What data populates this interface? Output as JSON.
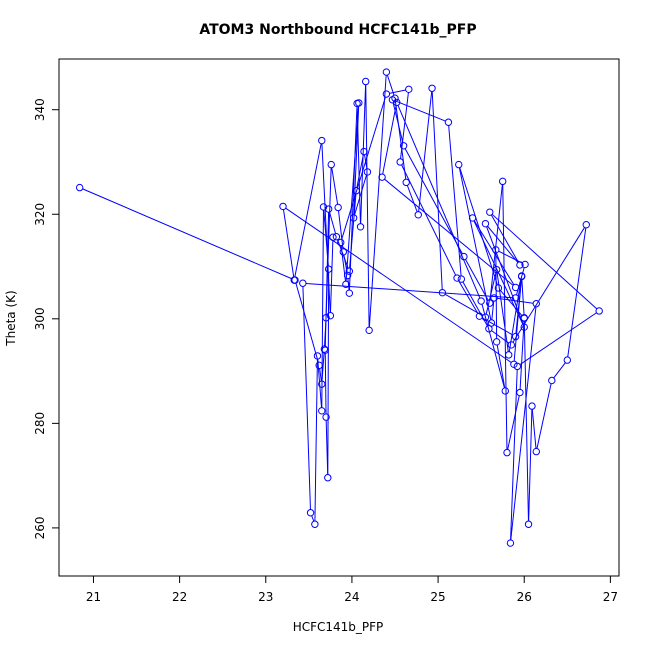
{
  "chart_data": {
    "type": "scatter",
    "title": "ATOM3 Northbound HCFC141b_PFP",
    "xlabel": "HCFC141b_PFP",
    "ylabel": "Theta (K)",
    "xlim": [
      20.6,
      27.1
    ],
    "ylim": [
      250.8,
      349.7
    ],
    "x_ticks": [
      21,
      22,
      23,
      24,
      25,
      26,
      27
    ],
    "y_ticks": [
      260,
      280,
      300,
      320,
      340
    ],
    "grid": false,
    "legend": "none",
    "line_color": "#0000ff",
    "marker": "open-circle",
    "connected": true,
    "series": [
      {
        "points": [
          [
            20.84,
            325.1
          ],
          [
            23.34,
            307.4
          ],
          [
            23.62,
            291.1
          ],
          [
            23.65,
            287.5
          ],
          [
            23.68,
            294.2
          ],
          [
            23.7,
            300.2
          ],
          [
            23.76,
            329.5
          ],
          [
            23.84,
            321.3
          ],
          [
            23.9,
            312.8
          ],
          [
            23.95,
            308.3
          ],
          [
            23.97,
            304.9
          ],
          [
            24.06,
            341.2
          ],
          [
            24.1,
            317.6
          ],
          [
            24.16,
            345.4
          ],
          [
            24.2,
            297.8
          ],
          [
            24.4,
            347.2
          ],
          [
            24.5,
            342.2
          ],
          [
            24.63,
            326.1
          ],
          [
            24.77,
            319.9
          ],
          [
            24.93,
            344.1
          ],
          [
            25.05,
            305.0
          ],
          [
            25.55,
            300.3
          ],
          [
            25.68,
            309.4
          ],
          [
            25.82,
            293.1
          ],
          [
            25.97,
            308.2
          ],
          [
            26.0,
            300.2
          ],
          [
            26.05,
            260.7
          ],
          [
            26.09,
            283.3
          ],
          [
            26.14,
            274.6
          ],
          [
            26.32,
            288.2
          ],
          [
            26.5,
            292.1
          ],
          [
            26.72,
            318.0
          ],
          [
            25.85,
            295.0
          ],
          [
            25.59,
            298.1
          ],
          [
            25.27,
            307.6
          ],
          [
            25.12,
            337.6
          ],
          [
            24.47,
            341.9
          ],
          [
            24.6,
            333.1
          ],
          [
            25.3,
            311.9
          ],
          [
            25.6,
            303.0
          ],
          [
            25.75,
            326.3
          ],
          [
            25.8,
            274.4
          ],
          [
            25.95,
            285.9
          ],
          [
            26.0,
            300.1
          ],
          [
            25.7,
            305.9
          ],
          [
            25.24,
            329.5
          ],
          [
            25.62,
            299.2
          ],
          [
            25.65,
            304.0
          ],
          [
            26.14,
            302.9
          ],
          [
            25.84,
            257.1
          ],
          [
            25.92,
            290.9
          ],
          [
            26.87,
            301.5
          ],
          [
            25.6,
            320.4
          ],
          [
            25.95,
            310.3
          ],
          [
            25.55,
            318.2
          ],
          [
            26.0,
            298.4
          ],
          [
            25.4,
            319.3
          ],
          [
            25.9,
            306.0
          ],
          [
            24.35,
            327.1
          ],
          [
            24.52,
            341.4
          ],
          [
            25.5,
            303.4
          ],
          [
            25.78,
            286.2
          ],
          [
            25.68,
            295.6
          ],
          [
            25.67,
            313.2
          ],
          [
            26.01,
            310.4
          ],
          [
            25.9,
            304.0
          ],
          [
            23.43,
            306.8
          ],
          [
            23.52,
            262.9
          ],
          [
            23.57,
            260.7
          ],
          [
            23.6,
            292.9
          ],
          [
            23.65,
            282.4
          ],
          [
            23.67,
            321.4
          ],
          [
            23.73,
            309.5
          ],
          [
            23.72,
            269.6
          ],
          [
            23.7,
            281.2
          ],
          [
            23.69,
            294.0
          ],
          [
            23.73,
            321.0
          ],
          [
            23.82,
            315.7
          ],
          [
            23.97,
            309.1
          ],
          [
            24.05,
            324.5
          ],
          [
            24.14,
            332.0
          ],
          [
            24.18,
            328.1
          ],
          [
            24.02,
            319.3
          ],
          [
            24.08,
            341.3
          ],
          [
            23.93,
            306.6
          ],
          [
            23.87,
            314.6
          ],
          [
            24.4,
            343.0
          ],
          [
            24.66,
            343.9
          ],
          [
            24.56,
            330.0
          ],
          [
            25.22,
            307.8
          ],
          [
            25.48,
            300.5
          ],
          [
            25.9,
            296.6
          ],
          [
            25.97,
            308.1
          ],
          [
            25.88,
            291.3
          ],
          [
            23.2,
            321.5
          ],
          [
            23.33,
            307.4
          ],
          [
            23.65,
            334.1
          ],
          [
            23.75,
            300.6
          ],
          [
            23.78,
            315.6
          ]
        ]
      }
    ]
  }
}
